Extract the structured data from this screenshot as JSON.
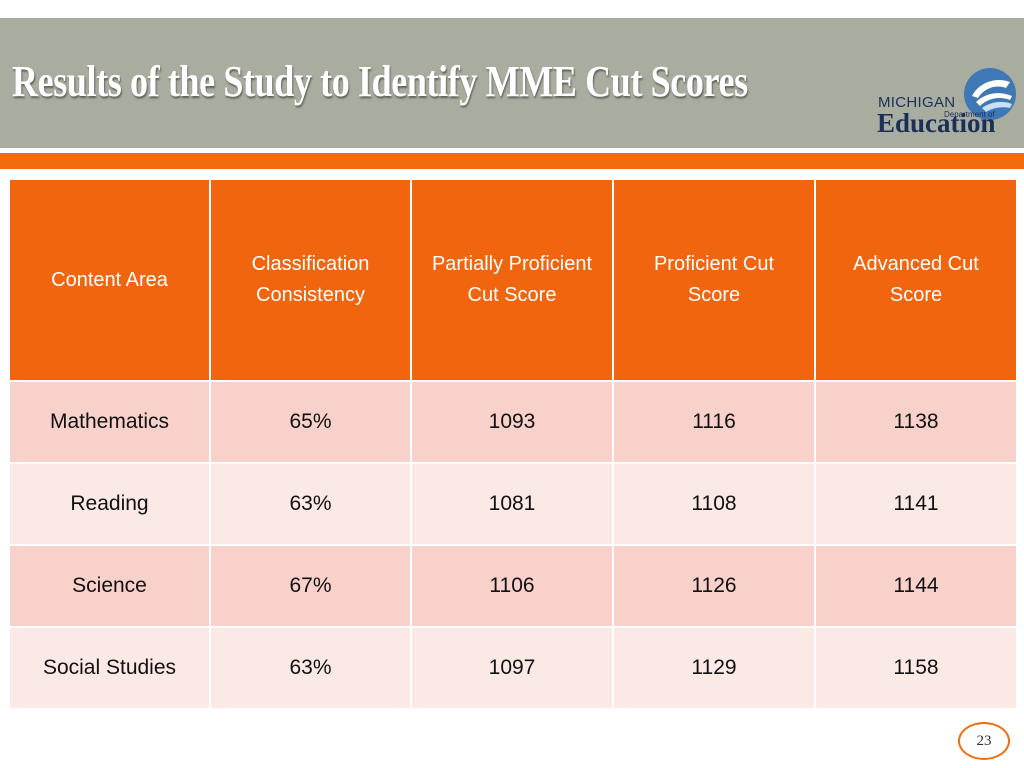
{
  "slide": {
    "title": "Results of the Study to Identify MME Cut Scores",
    "page_number": "23",
    "colors": {
      "header_bg": "#a9ada0",
      "accent": "#f26b0f",
      "table_header": "#f0650e",
      "row_odd": "#f8d1cb",
      "row_even": "#fbe9e6"
    }
  },
  "logo": {
    "line1": "MICHIGAN",
    "line2": "Department of",
    "line3": "Education"
  },
  "table": {
    "headers": [
      "Content Area",
      "Classification Consistency",
      "Partially Proficient Cut Score",
      "Proficient Cut Score",
      "Advanced Cut Score"
    ],
    "rows": [
      [
        "Mathematics",
        "65%",
        "1093",
        "1116",
        "1138"
      ],
      [
        "Reading",
        "63%",
        "1081",
        "1108",
        "1141"
      ],
      [
        "Science",
        "67%",
        "1106",
        "1126",
        "1144"
      ],
      [
        "Social Studies",
        "63%",
        "1097",
        "1129",
        "1158"
      ]
    ]
  }
}
